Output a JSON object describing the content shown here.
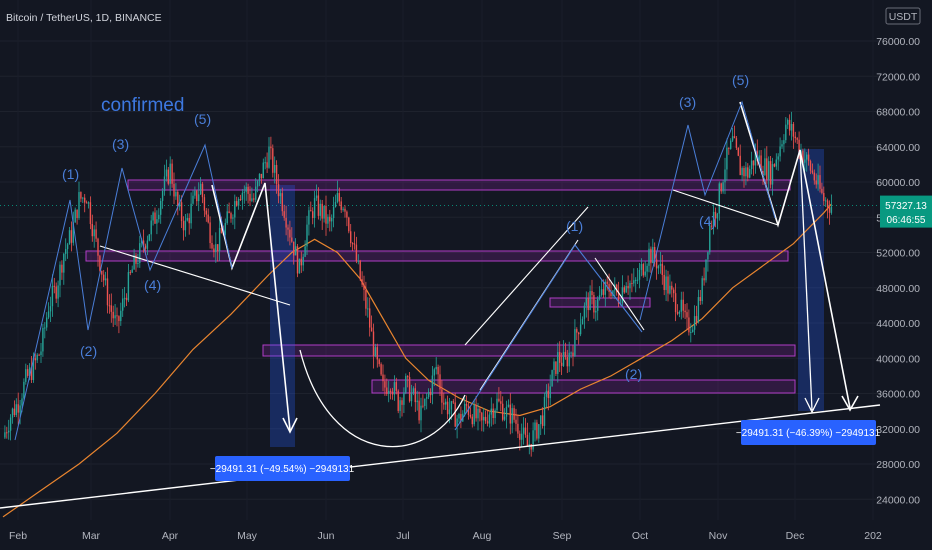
{
  "header": {
    "symbol": "Bitcoin / TetherUS, 1D, BINANCE",
    "currency": "USDT"
  },
  "annotations": {
    "confirmed": "confirmed",
    "waves_left": [
      "(1)",
      "(2)",
      "(3)",
      "(4)",
      "(5)"
    ],
    "waves_mid": [
      "(1)",
      "(2)"
    ],
    "waves_right": [
      "(3)",
      "(4)",
      "(5)"
    ],
    "measure_left": "−29491.31 (−49.54%) −2949131",
    "measure_right": "−29491.31 (−46.39%) −2949131"
  },
  "price_tag": {
    "value": "57327.13",
    "countdown": "06:46:55"
  },
  "chart_data": {
    "type": "candlestick",
    "title": "Bitcoin / TetherUS, 1D, BINANCE",
    "x_ticks": [
      "Feb",
      "Mar",
      "Apr",
      "May",
      "Jun",
      "Jul",
      "Aug",
      "Sep",
      "Oct",
      "Nov",
      "Dec",
      "202"
    ],
    "y_ticks": [
      24000,
      28000,
      32000,
      36000,
      40000,
      44000,
      48000,
      52000,
      56000,
      60000,
      64000,
      68000,
      72000,
      76000
    ],
    "ylim": [
      21000,
      80000
    ],
    "last_price": 57327.13,
    "close_path": [
      [
        0,
        31000
      ],
      [
        4,
        33500
      ],
      [
        8,
        35000
      ],
      [
        12,
        37500
      ],
      [
        16,
        39000
      ],
      [
        20,
        41000
      ],
      [
        24,
        46000
      ],
      [
        28,
        48000
      ],
      [
        32,
        52000
      ],
      [
        36,
        54000
      ],
      [
        40,
        58000
      ],
      [
        44,
        58500
      ],
      [
        48,
        54000
      ],
      [
        52,
        50000
      ],
      [
        56,
        46000
      ],
      [
        60,
        43500
      ],
      [
        64,
        47000
      ],
      [
        68,
        50000
      ],
      [
        72,
        52000
      ],
      [
        76,
        54000
      ],
      [
        80,
        56000
      ],
      [
        84,
        59000
      ],
      [
        88,
        61500
      ],
      [
        92,
        57000
      ],
      [
        96,
        55000
      ],
      [
        100,
        57500
      ],
      [
        104,
        59500
      ],
      [
        108,
        55000
      ],
      [
        112,
        52500
      ],
      [
        116,
        54500
      ],
      [
        120,
        56500
      ],
      [
        124,
        59000
      ],
      [
        128,
        59000
      ],
      [
        132,
        58000
      ],
      [
        136,
        61000
      ],
      [
        140,
        63500
      ],
      [
        144,
        60000
      ],
      [
        148,
        57000
      ],
      [
        152,
        53500
      ],
      [
        156,
        50000
      ],
      [
        160,
        55000
      ],
      [
        164,
        57500
      ],
      [
        168,
        56500
      ],
      [
        172,
        55000
      ],
      [
        176,
        58000
      ],
      [
        180,
        57500
      ],
      [
        184,
        53000
      ],
      [
        188,
        49000
      ],
      [
        192,
        45000
      ],
      [
        196,
        40000
      ],
      [
        200,
        36500
      ],
      [
        204,
        37500
      ],
      [
        208,
        35000
      ],
      [
        212,
        37000
      ],
      [
        216,
        35500
      ],
      [
        220,
        33500
      ],
      [
        224,
        36000
      ],
      [
        228,
        39000
      ],
      [
        232,
        35000
      ],
      [
        236,
        34000
      ],
      [
        240,
        33000
      ],
      [
        244,
        34500
      ],
      [
        248,
        33500
      ],
      [
        252,
        32500
      ],
      [
        256,
        34000
      ],
      [
        260,
        35000
      ],
      [
        264,
        34000
      ],
      [
        268,
        33500
      ],
      [
        272,
        32000
      ],
      [
        276,
        30000
      ],
      [
        280,
        31500
      ],
      [
        284,
        33500
      ],
      [
        288,
        37000
      ],
      [
        292,
        40000
      ],
      [
        296,
        39500
      ],
      [
        300,
        41500
      ],
      [
        304,
        44500
      ],
      [
        308,
        46500
      ],
      [
        312,
        46000
      ],
      [
        316,
        47500
      ],
      [
        320,
        48000
      ],
      [
        324,
        47000
      ],
      [
        328,
        49000
      ],
      [
        332,
        48000
      ],
      [
        336,
        50000
      ],
      [
        340,
        52000
      ],
      [
        344,
        51000
      ],
      [
        348,
        49000
      ],
      [
        352,
        47000
      ],
      [
        356,
        46000
      ],
      [
        360,
        43500
      ],
      [
        364,
        44500
      ],
      [
        368,
        48000
      ],
      [
        372,
        55000
      ],
      [
        376,
        57500
      ],
      [
        380,
        62000
      ],
      [
        384,
        64500
      ],
      [
        388,
        61500
      ],
      [
        392,
        61000
      ],
      [
        396,
        63000
      ],
      [
        400,
        62000
      ],
      [
        404,
        61000
      ],
      [
        408,
        63500
      ],
      [
        412,
        66500
      ],
      [
        416,
        65500
      ],
      [
        420,
        63500
      ],
      [
        424,
        62000
      ],
      [
        428,
        60000
      ],
      [
        432,
        58000
      ],
      [
        436,
        57327
      ]
    ],
    "moving_average": [
      [
        0,
        22000
      ],
      [
        20,
        25000
      ],
      [
        40,
        28000
      ],
      [
        60,
        31500
      ],
      [
        80,
        36000
      ],
      [
        100,
        41000
      ],
      [
        120,
        45000
      ],
      [
        140,
        49500
      ],
      [
        152,
        52000
      ],
      [
        164,
        53500
      ],
      [
        176,
        52000
      ],
      [
        188,
        49000
      ],
      [
        200,
        44500
      ],
      [
        212,
        40000
      ],
      [
        224,
        37500
      ],
      [
        240,
        35500
      ],
      [
        256,
        34000
      ],
      [
        272,
        33500
      ],
      [
        288,
        34500
      ],
      [
        304,
        36500
      ],
      [
        320,
        38000
      ],
      [
        336,
        40000
      ],
      [
        352,
        42000
      ],
      [
        368,
        44500
      ],
      [
        384,
        48000
      ],
      [
        400,
        50500
      ],
      [
        416,
        53000
      ],
      [
        432,
        56500
      ],
      [
        436,
        57500
      ]
    ]
  }
}
